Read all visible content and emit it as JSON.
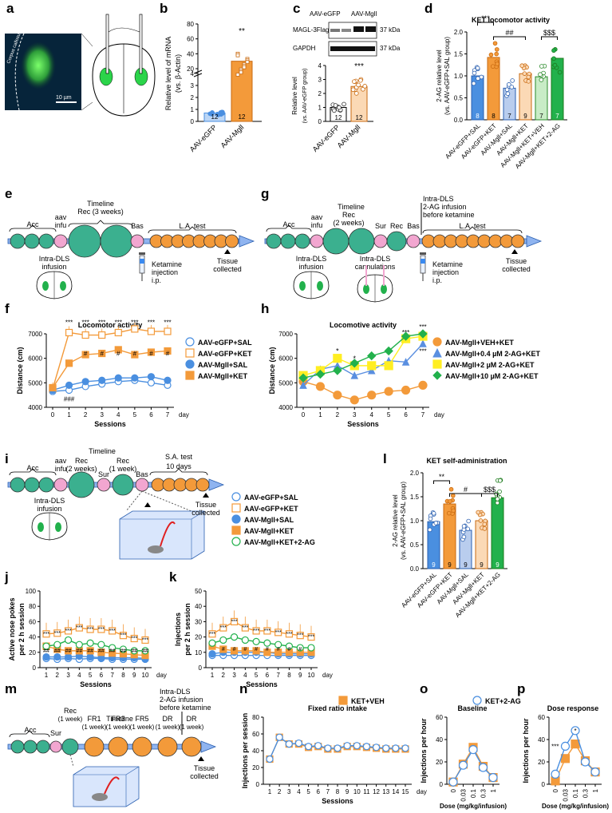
{
  "panels": {
    "a": {
      "letter": "a",
      "scale_label": "10 µm",
      "region_label": "Corpus callosum"
    },
    "b": {
      "letter": "b",
      "ylabel": "Relative level of mRNA",
      "ylabel2": "(vs. β-Actin)",
      "categories": [
        "AAV-eGFP",
        "AAV-Mgll"
      ],
      "n": [
        "12",
        "12"
      ],
      "sig": "**"
    },
    "c": {
      "letter": "c",
      "lanes": [
        "AAV-eGFP",
        "AAV-Mgll"
      ],
      "band1": "MAGL-3Flag",
      "band2": "GAPDH",
      "kda1": "37 kDa",
      "kda2": "37 kDa",
      "ylabel": "Relative level",
      "ylabel2": "(vs. AAV-eGFP group)",
      "categories": [
        "AAV-eGFP",
        "AAV-Mgll"
      ],
      "n": [
        "12",
        "12"
      ],
      "sig": "***"
    },
    "d": {
      "letter": "d",
      "title": "KET locomotor activity",
      "ylabel": "2-AG relative level",
      "ylabel2": "(vs. AAV-eGFP+SAL group)",
      "categories": [
        "AAV-eGFP+SAL",
        "AAV-eGFP+KET",
        "AAV-Mgll+SAL",
        "AAV-Mgll+KET",
        "AAV-Mgll+KET+VEH",
        "AAV-Mgll+KET+2-AG"
      ],
      "n": [
        "8",
        "8",
        "7",
        "9",
        "7",
        "7"
      ],
      "sig1": "***",
      "sig2": "##",
      "sig3": "$$$"
    },
    "e": {
      "letter": "e",
      "acc": "Acc",
      "aav": "aav",
      "infu": "infu",
      "timeline": "Timeline",
      "rec": "Rec (3 weeks)",
      "bas": "Bas",
      "la": "L.A. test",
      "intra": "Intra-DLS",
      "infusion": "infusion",
      "ket1": "Ketamine",
      "ket2": "injection",
      "ket3": "i.p.",
      "tissue1": "Tissue",
      "tissue2": "collected"
    },
    "f": {
      "letter": "f",
      "title": "Locomotor activity",
      "ylabel": "Distance (cm)",
      "xlabel": "Sessions",
      "day": "day",
      "legend": [
        "AAV-eGFP+SAL",
        "AAV-eGFP+KET",
        "AAV-Mgll+SAL",
        "AAV-Mgll+KET"
      ]
    },
    "g": {
      "letter": "g",
      "acc": "Acc",
      "aav": "aav",
      "infu": "infu",
      "timeline": "Timeline",
      "rec": "Rec",
      "rec2": "(2 weeks)",
      "sur": "Sur",
      "rec3": "Rec",
      "bas": "Bas",
      "intra_top1": "Intra-DLS",
      "intra_top2": "2-AG infusion",
      "intra_top3": "before ketamine",
      "la": "L.A. test",
      "intra": "Intra-DLS",
      "infusion": "infusion",
      "cann1": "Intra-DLS",
      "cann2": "cannulations",
      "ket1": "Ketamine",
      "ket2": "injection",
      "ket3": "i.p.",
      "tissue1": "Tissue",
      "tissue2": "collected"
    },
    "h": {
      "letter": "h",
      "title": "Locomotive activity",
      "ylabel": "Distance (cm)",
      "xlabel": "Sessions",
      "day": "day",
      "legend": [
        "AAV-Mgll+VEH+KET",
        "AAV-Mgll+0.4 µM 2-AG+KET",
        "AAV-Mgll+2 µM 2-AG+KET",
        "AAV-Mgll+10 µM 2-AG+KET"
      ]
    },
    "i": {
      "letter": "i",
      "acc": "Acc",
      "aav": "aav",
      "infu": "infu",
      "timeline": "Timeline",
      "rec": "Rec",
      "rec_a": "(2 weeks)",
      "sur": "Sur",
      "rec2": "Rec",
      "rec2_a": "(1 week)",
      "bas": "Bas",
      "sa": "S.A. test",
      "sa2": "10 days",
      "intra": "Intra-DLS",
      "infusion": "infusion",
      "tissue1": "Tissue",
      "tissue2": "collected",
      "legend": [
        "AAV-eGFP+SAL",
        "AAV-eGFP+KET",
        "AAV-Mgll+SAL",
        "AAV-Mgll+KET",
        "AAV-Mgll+KET+2-AG"
      ]
    },
    "j": {
      "letter": "j",
      "ylabel": "Active nose pokes",
      "ylabel2": "per 2 h session",
      "xlabel": "Sessions",
      "day": "day"
    },
    "k": {
      "letter": "k",
      "ylabel": "Injections",
      "ylabel2": "per 2 h session",
      "xlabel": "Sessions",
      "day": "day"
    },
    "l": {
      "letter": "l",
      "title": "KET self-administration",
      "ylabel": "2-AG relative level",
      "ylabel2": "(vs. AAV-eGFP+SAL group)",
      "categories": [
        "AAV-eGFP+SAL",
        "AAV-eGFP+KET",
        "AAV-Mgll+SAL",
        "AAV-Mgll+KET",
        "AAV-Mgll+KET+2-AG"
      ],
      "n": [
        "9",
        "9",
        "9",
        "9",
        "9"
      ],
      "sig1": "**",
      "sig2": "#",
      "sig3": "$$$"
    },
    "m": {
      "letter": "m",
      "acc": "Acc",
      "sur": "Sur",
      "timeline": "Timeline",
      "rec": "Rec",
      "fr1": "FR1",
      "fr3": "FR3",
      "fr5": "FR5",
      "dr": "DR",
      "dr2": "DR",
      "wk": "(1 week)",
      "intra1": "Intra-DLS",
      "intra2": "2-AG infusion",
      "intra3": "before ketamine",
      "tissue1": "Tissue",
      "tissue2": "collected"
    },
    "n": {
      "letter": "n",
      "title": "Fixed ratio intake",
      "ylabel": "Injections per session",
      "xlabel": "Sessions",
      "day": "day",
      "legend": "KET+VEH"
    },
    "o": {
      "letter": "o",
      "title": "Baseline",
      "ylabel": "Injections per hour",
      "xlabel": "Dose (mg/kg/infusion)",
      "legend": "KET+2-AG"
    },
    "p": {
      "letter": "p",
      "title": "Dose response",
      "ylabel": "Injections per hour",
      "xlabel": "Dose (mg/kg/infusion)"
    }
  },
  "colors": {
    "blue": "#4a8fe0",
    "orange": "#f39a3a",
    "peach": "#fbd9b5",
    "green": "#22b14c",
    "lightblue": "#bcd6f5",
    "lightgreen": "#c8ecc6",
    "teal": "#3bb08f",
    "pink": "#f2a6d0",
    "yellow": "#ffee22"
  },
  "chart_data": [
    {
      "panel": "b",
      "type": "bar",
      "categories": [
        "AAV-eGFP",
        "AAV-Mgll"
      ],
      "values": [
        0.7,
        30
      ],
      "ylim": [
        0,
        80
      ],
      "yticks_bottom": [
        0,
        1,
        2,
        3,
        4
      ],
      "yticks_top": [
        20,
        40,
        60,
        80
      ]
    },
    {
      "panel": "c",
      "type": "bar",
      "categories": [
        "AAV-eGFP",
        "AAV-Mgll"
      ],
      "values": [
        1.0,
        2.5
      ],
      "ylim": [
        0,
        4
      ]
    },
    {
      "panel": "d",
      "type": "bar",
      "categories": [
        "AAV-eGFP+SAL",
        "AAV-eGFP+KET",
        "AAV-Mgll+SAL",
        "AAV-Mgll+KET",
        "AAV-Mgll+KET+VEH",
        "AAV-Mgll+KET+2-AG"
      ],
      "values": [
        1.0,
        1.42,
        0.72,
        1.05,
        0.98,
        1.4
      ],
      "ylim": [
        0,
        2.0
      ]
    },
    {
      "panel": "f",
      "type": "line",
      "x": [
        0,
        1,
        2,
        3,
        4,
        5,
        6,
        7
      ],
      "ylim": [
        4000,
        7000
      ],
      "series": [
        {
          "name": "AAV-eGFP+SAL",
          "values": [
            4650,
            4700,
            4850,
            4950,
            5050,
            5100,
            5000,
            4900
          ]
        },
        {
          "name": "AAV-eGFP+KET",
          "values": [
            4750,
            7050,
            6950,
            6950,
            7050,
            7200,
            7100,
            7100
          ]
        },
        {
          "name": "AAV-Mgll+SAL",
          "values": [
            4700,
            4900,
            5050,
            5100,
            5200,
            5200,
            5250,
            5100
          ]
        },
        {
          "name": "AAV-Mgll+KET",
          "values": [
            4800,
            5800,
            6150,
            6200,
            6350,
            6150,
            6250,
            6300
          ]
        }
      ]
    },
    {
      "panel": "h",
      "type": "line",
      "x": [
        0,
        1,
        2,
        3,
        4,
        5,
        6,
        7
      ],
      "ylim": [
        4000,
        7000
      ],
      "series": [
        {
          "name": "AAV-Mgll+VEH+KET",
          "values": [
            5050,
            4850,
            4500,
            4300,
            4500,
            4650,
            4700,
            4900
          ]
        },
        {
          "name": "AAV-Mgll+0.4 µM 2-AG+KET",
          "values": [
            4900,
            5550,
            5700,
            5300,
            5500,
            5900,
            5850,
            6600
          ]
        },
        {
          "name": "AAV-Mgll+2 µM 2-AG+KET",
          "values": [
            5300,
            5500,
            6000,
            5700,
            5700,
            5700,
            6800,
            6900
          ]
        },
        {
          "name": "AAV-Mgll+10 µM 2-AG+KET",
          "values": [
            5200,
            5350,
            5500,
            5800,
            6100,
            6300,
            6900,
            7000
          ]
        }
      ]
    },
    {
      "panel": "j",
      "type": "line",
      "x": [
        1,
        2,
        3,
        4,
        5,
        6,
        7,
        8,
        9,
        10
      ],
      "ylim": [
        0,
        100
      ],
      "series": [
        {
          "name": "AAV-eGFP+SAL",
          "values": [
            12,
            11,
            12,
            11,
            12,
            12,
            11,
            11,
            11,
            11
          ]
        },
        {
          "name": "AAV-eGFP+KET",
          "values": [
            44,
            45,
            48,
            52,
            50,
            50,
            48,
            42,
            38,
            36
          ]
        },
        {
          "name": "AAV-Mgll+SAL",
          "values": [
            14,
            14,
            14,
            15,
            14,
            13,
            13,
            13,
            13,
            12
          ]
        },
        {
          "name": "AAV-Mgll+KET",
          "values": [
            28,
            24,
            22,
            22,
            22,
            20,
            19,
            18,
            17,
            16
          ]
        },
        {
          "name": "AAV-Mgll+KET+2-AG",
          "values": [
            28,
            30,
            36,
            30,
            32,
            30,
            26,
            24,
            22,
            22
          ]
        }
      ]
    },
    {
      "panel": "k",
      "type": "line",
      "x": [
        1,
        2,
        3,
        4,
        5,
        6,
        7,
        8,
        9,
        10
      ],
      "ylim": [
        0,
        50
      ],
      "series": [
        {
          "name": "AAV-eGFP+SAL",
          "values": [
            8,
            8,
            8,
            8,
            8,
            8,
            8,
            8,
            8,
            8
          ]
        },
        {
          "name": "AAV-eGFP+KET",
          "values": [
            22,
            26,
            30,
            26,
            24,
            24,
            23,
            22,
            21,
            20
          ]
        },
        {
          "name": "AAV-Mgll+SAL",
          "values": [
            9,
            10,
            10,
            10,
            10,
            10,
            9,
            9,
            9,
            9
          ]
        },
        {
          "name": "AAV-Mgll+KET",
          "values": [
            14,
            12,
            11,
            11,
            11,
            10,
            10,
            10,
            10,
            10
          ]
        },
        {
          "name": "AAV-Mgll+KET+2-AG",
          "values": [
            16,
            18,
            20,
            18,
            17,
            16,
            15,
            14,
            13,
            13
          ]
        }
      ]
    },
    {
      "panel": "l",
      "type": "bar",
      "categories": [
        "AAV-eGFP+SAL",
        "AAV-eGFP+KET",
        "AAV-Mgll+SAL",
        "AAV-Mgll+KET",
        "AAV-Mgll+KET+2-AG"
      ],
      "values": [
        0.98,
        1.35,
        0.8,
        1.0,
        1.48
      ],
      "ylim": [
        0,
        2.0
      ]
    },
    {
      "panel": "n",
      "type": "line",
      "x": [
        1,
        2,
        3,
        4,
        5,
        6,
        7,
        8,
        9,
        10,
        11,
        12,
        13,
        14,
        15
      ],
      "ylim": [
        0,
        80
      ],
      "series": [
        {
          "name": "KET+VEH",
          "values": [
            30,
            56,
            48,
            48,
            44,
            45,
            42,
            42,
            45,
            45,
            44,
            43,
            42,
            42,
            42
          ]
        },
        {
          "name": "KET+2-AG",
          "values": [
            30,
            56,
            48,
            49,
            45,
            46,
            43,
            43,
            46,
            46,
            45,
            44,
            43,
            43,
            43
          ]
        }
      ]
    },
    {
      "panel": "o",
      "type": "line",
      "categories": [
        "0",
        "0.03",
        "0.1",
        "0.3",
        "1"
      ],
      "ylim": [
        0,
        60
      ],
      "series": [
        {
          "name": "KET+VEH",
          "values": [
            2,
            18,
            33,
            16,
            6
          ]
        },
        {
          "name": "KET+2-AG",
          "values": [
            2,
            17,
            31,
            15,
            6
          ]
        }
      ]
    },
    {
      "panel": "p",
      "type": "line",
      "categories": [
        "0",
        "0.03",
        "0.1",
        "0.3",
        "1"
      ],
      "ylim": [
        0,
        60
      ],
      "series": [
        {
          "name": "KET+VEH",
          "values": [
            3,
            23,
            36,
            21,
            11
          ]
        },
        {
          "name": "KET+2-AG",
          "values": [
            9,
            34,
            48,
            20,
            11
          ]
        }
      ]
    }
  ]
}
